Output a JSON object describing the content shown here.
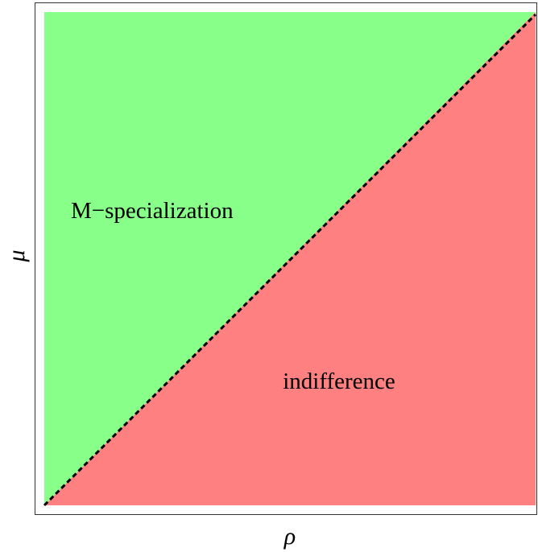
{
  "axes": {
    "x_label": "ρ",
    "y_label": "μ"
  },
  "regions": [
    {
      "label": "M−specialization",
      "color": "#88ff88"
    },
    {
      "label": "indifference",
      "color": "#ff8080"
    }
  ]
}
